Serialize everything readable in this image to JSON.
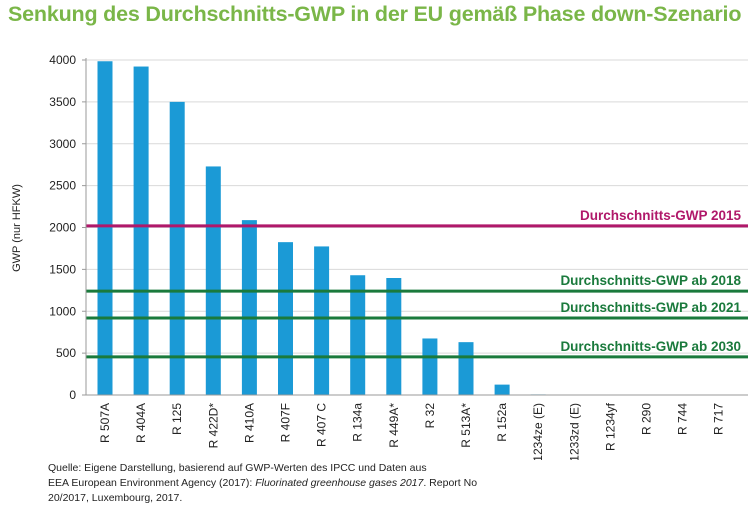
{
  "title": "Senkung des Durchschnitts-GWP in der EU gemäß Phase down-Szenario",
  "colors": {
    "title": "#7ab648",
    "bar": "#1b9ad6",
    "line_2015": "#b0186a",
    "line_phase": "#1a7a3c",
    "grid": "#d9d9d9",
    "axis": "#9a9a9a"
  },
  "chart_data": {
    "type": "bar",
    "ylabel": "GWP (nur HFKW)",
    "xlabel": "",
    "ylim": [
      0,
      4000
    ],
    "yticks": [
      0,
      500,
      1000,
      1500,
      2000,
      2500,
      3000,
      3500,
      4000
    ],
    "ytick_labels": [
      "0",
      "500",
      "1000",
      "1500",
      "2000",
      "2500",
      "3000",
      "3500",
      "4000"
    ],
    "grid": true,
    "categories": [
      "R 507A",
      "R 404A",
      "R 125",
      "R 422D*",
      "R 410A",
      "R 407F",
      "R 407 C",
      "R 134a",
      "R 449A*",
      "R 32",
      "R 513A*",
      "R 152a",
      "R 1234ze (E)",
      "R 1233zd (E)",
      "R 1234yf",
      "R 290",
      "R 744",
      "R 717"
    ],
    "values": [
      3985,
      3922,
      3500,
      2729,
      2088,
      1825,
      1774,
      1430,
      1397,
      675,
      631,
      124,
      7,
      4.5,
      4,
      3,
      1,
      0
    ],
    "reference_lines": [
      {
        "label": "Durchschnitts-GWP 2015",
        "value": 2020,
        "color": "#b0186a"
      },
      {
        "label": "Durchschnitts-GWP ab 2018",
        "value": 1240,
        "color": "#1a7a3c"
      },
      {
        "label": "Durchschnitts-GWP ab 2021",
        "value": 920,
        "color": "#1a7a3c"
      },
      {
        "label": "Durchschnitts-GWP ab 2030",
        "value": 455,
        "color": "#1a7a3c"
      }
    ]
  },
  "source": {
    "line1": "Quelle: Eigene Darstellung, basierend auf GWP-Werten des IPCC und Daten aus",
    "line2_prefix": "EEA European Environment Agency  (2017): ",
    "line2_italic": "Fluorinated greenhouse gases 2017",
    "line2_suffix": ". Report No",
    "line3": "20/2017, Luxembourg, 2017."
  }
}
